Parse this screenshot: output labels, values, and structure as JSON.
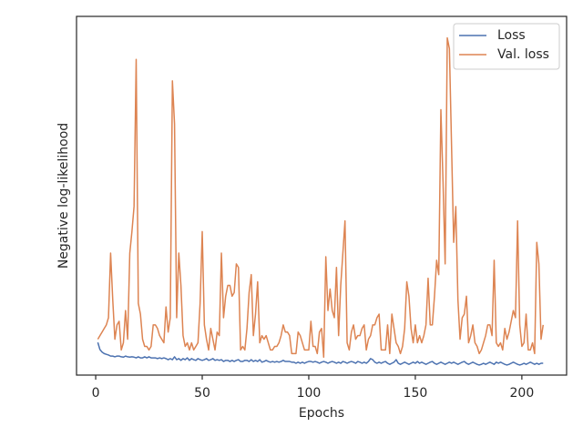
{
  "chart_data": {
    "type": "line",
    "xlabel": "Epochs",
    "ylabel": "Negative log-likelihood",
    "xlim": [
      -9,
      221
    ],
    "xticks": [
      0,
      50,
      100,
      150,
      200
    ],
    "ylim": [
      0,
      100
    ],
    "legend": "upper right",
    "x": [
      1,
      2,
      3,
      4,
      5,
      6,
      7,
      8,
      9,
      10,
      11,
      12,
      13,
      14,
      15,
      16,
      17,
      18,
      19,
      20,
      21,
      22,
      23,
      24,
      25,
      26,
      27,
      28,
      29,
      30,
      31,
      32,
      33,
      34,
      35,
      36,
      37,
      38,
      39,
      40,
      41,
      42,
      43,
      44,
      45,
      46,
      47,
      48,
      49,
      50,
      51,
      52,
      53,
      54,
      55,
      56,
      57,
      58,
      59,
      60,
      61,
      62,
      63,
      64,
      65,
      66,
      67,
      68,
      69,
      70,
      71,
      72,
      73,
      74,
      75,
      76,
      77,
      78,
      79,
      80,
      81,
      82,
      83,
      84,
      85,
      86,
      87,
      88,
      89,
      90,
      91,
      92,
      93,
      94,
      95,
      96,
      97,
      98,
      99,
      100,
      101,
      102,
      103,
      104,
      105,
      106,
      107,
      108,
      109,
      110,
      111,
      112,
      113,
      114,
      115,
      116,
      117,
      118,
      119,
      120,
      121,
      122,
      123,
      124,
      125,
      126,
      127,
      128,
      129,
      130,
      131,
      132,
      133,
      134,
      135,
      136,
      137,
      138,
      139,
      140,
      141,
      142,
      143,
      144,
      145,
      146,
      147,
      148,
      149,
      150,
      151,
      152,
      153,
      154,
      155,
      156,
      157,
      158,
      159,
      160,
      161,
      162,
      163,
      164,
      165,
      166,
      167,
      168,
      169,
      170,
      171,
      172,
      173,
      174,
      175,
      176,
      177,
      178,
      179,
      180,
      181,
      182,
      183,
      184,
      185,
      186,
      187,
      188,
      189,
      190,
      191,
      192,
      193,
      194,
      195,
      196,
      197,
      198,
      199,
      200,
      201,
      202,
      203,
      204,
      205,
      206,
      207,
      208,
      209,
      210
    ],
    "series": [
      {
        "name": "Loss",
        "color": "#4c72b0",
        "values": [
          9.1,
          7.1,
          6.4,
          6.0,
          5.8,
          5.6,
          5.3,
          5.3,
          5.1,
          5.3,
          5.3,
          5.1,
          5.0,
          5.3,
          5.1,
          5.0,
          5.1,
          5.0,
          4.8,
          5.1,
          4.8,
          4.8,
          5.1,
          4.8,
          5.1,
          4.8,
          4.8,
          4.8,
          4.6,
          4.8,
          4.6,
          4.8,
          4.6,
          4.3,
          4.6,
          4.3,
          5.1,
          4.3,
          4.6,
          4.1,
          4.6,
          4.3,
          4.8,
          4.1,
          4.6,
          4.3,
          4.1,
          4.6,
          4.3,
          4.1,
          4.3,
          4.6,
          4.1,
          4.3,
          4.6,
          4.1,
          4.3,
          4.1,
          4.3,
          3.8,
          4.1,
          4.1,
          3.8,
          4.1,
          3.8,
          4.1,
          4.3,
          3.8,
          3.8,
          4.1,
          4.1,
          3.8,
          4.3,
          3.8,
          4.1,
          3.8,
          4.3,
          3.6,
          3.8,
          4.1,
          3.8,
          3.6,
          3.8,
          3.6,
          3.8,
          3.6,
          3.8,
          4.1,
          3.8,
          3.8,
          3.8,
          3.6,
          3.6,
          3.3,
          3.6,
          3.3,
          3.6,
          3.3,
          3.6,
          3.8,
          3.8,
          3.6,
          3.8,
          3.6,
          3.3,
          3.6,
          3.8,
          3.6,
          3.3,
          3.6,
          3.8,
          3.6,
          3.3,
          3.6,
          3.3,
          3.8,
          3.6,
          3.3,
          3.6,
          3.8,
          3.6,
          3.3,
          3.8,
          3.6,
          3.3,
          3.6,
          3.3,
          3.8,
          4.6,
          4.3,
          3.6,
          3.3,
          3.6,
          3.3,
          3.6,
          3.8,
          3.3,
          3.0,
          3.3,
          3.6,
          4.3,
          3.3,
          3.0,
          3.3,
          3.6,
          3.3,
          3.0,
          3.3,
          3.6,
          3.3,
          3.8,
          3.3,
          3.6,
          3.3,
          3.0,
          3.3,
          3.6,
          3.8,
          3.3,
          3.0,
          3.3,
          3.6,
          3.3,
          3.0,
          3.3,
          3.6,
          3.3,
          3.6,
          3.3,
          3.0,
          3.3,
          3.6,
          3.8,
          3.3,
          3.0,
          3.3,
          3.6,
          3.3,
          3.0,
          2.8,
          3.0,
          3.3,
          3.0,
          3.3,
          3.6,
          3.3,
          3.0,
          3.6,
          3.3,
          3.6,
          3.3,
          3.0,
          2.8,
          3.0,
          3.3,
          3.6,
          3.3,
          3.0,
          2.8,
          3.0,
          3.3,
          3.0,
          3.3,
          3.6,
          3.3,
          3.0,
          3.3,
          3.0,
          3.3,
          3.3
        ]
      },
      {
        "name": "Val. loss",
        "color": "#dd8452",
        "values": [
          10,
          11,
          12,
          13,
          14,
          16,
          34,
          21,
          10,
          14,
          15,
          7,
          9,
          18,
          10,
          34,
          40,
          47,
          88,
          20,
          17,
          10,
          8,
          8,
          7,
          8,
          14,
          14,
          13,
          11,
          10,
          9,
          19,
          12,
          16,
          82,
          70,
          16,
          34,
          25,
          11,
          8,
          9,
          7,
          9,
          7,
          8,
          9,
          20,
          40,
          14,
          10,
          7,
          13,
          10,
          7,
          12,
          11,
          34,
          16,
          22,
          25,
          25,
          22,
          23,
          31,
          30,
          7,
          8,
          7,
          13,
          23,
          28,
          11,
          17,
          26,
          9,
          11,
          10,
          11,
          9,
          7,
          7,
          8,
          8,
          9,
          11,
          14,
          12,
          12,
          11,
          6,
          6,
          6,
          12,
          11,
          9,
          7,
          7,
          7,
          15,
          8,
          8,
          6,
          12,
          13,
          5,
          33,
          18,
          24,
          18,
          16,
          30,
          11,
          25,
          34,
          43,
          9,
          7,
          12,
          14,
          10,
          11,
          11,
          13,
          14,
          7,
          10,
          11,
          14,
          14,
          16,
          17,
          7,
          7,
          7,
          14,
          6,
          17,
          13,
          9,
          8,
          6,
          8,
          13,
          26,
          22,
          13,
          9,
          14,
          9,
          11,
          9,
          11,
          14,
          27,
          14,
          14,
          22,
          32,
          28,
          74,
          54,
          31,
          94,
          91,
          64,
          37,
          47,
          21,
          10,
          16,
          17,
          22,
          9,
          11,
          14,
          9,
          8,
          6,
          7,
          9,
          11,
          14,
          14,
          11,
          32,
          9,
          8,
          9,
          7,
          13,
          10,
          12,
          15,
          18,
          16,
          43,
          14,
          8,
          9,
          17,
          7,
          7,
          9,
          6,
          37,
          31,
          10,
          14
        ]
      }
    ]
  }
}
